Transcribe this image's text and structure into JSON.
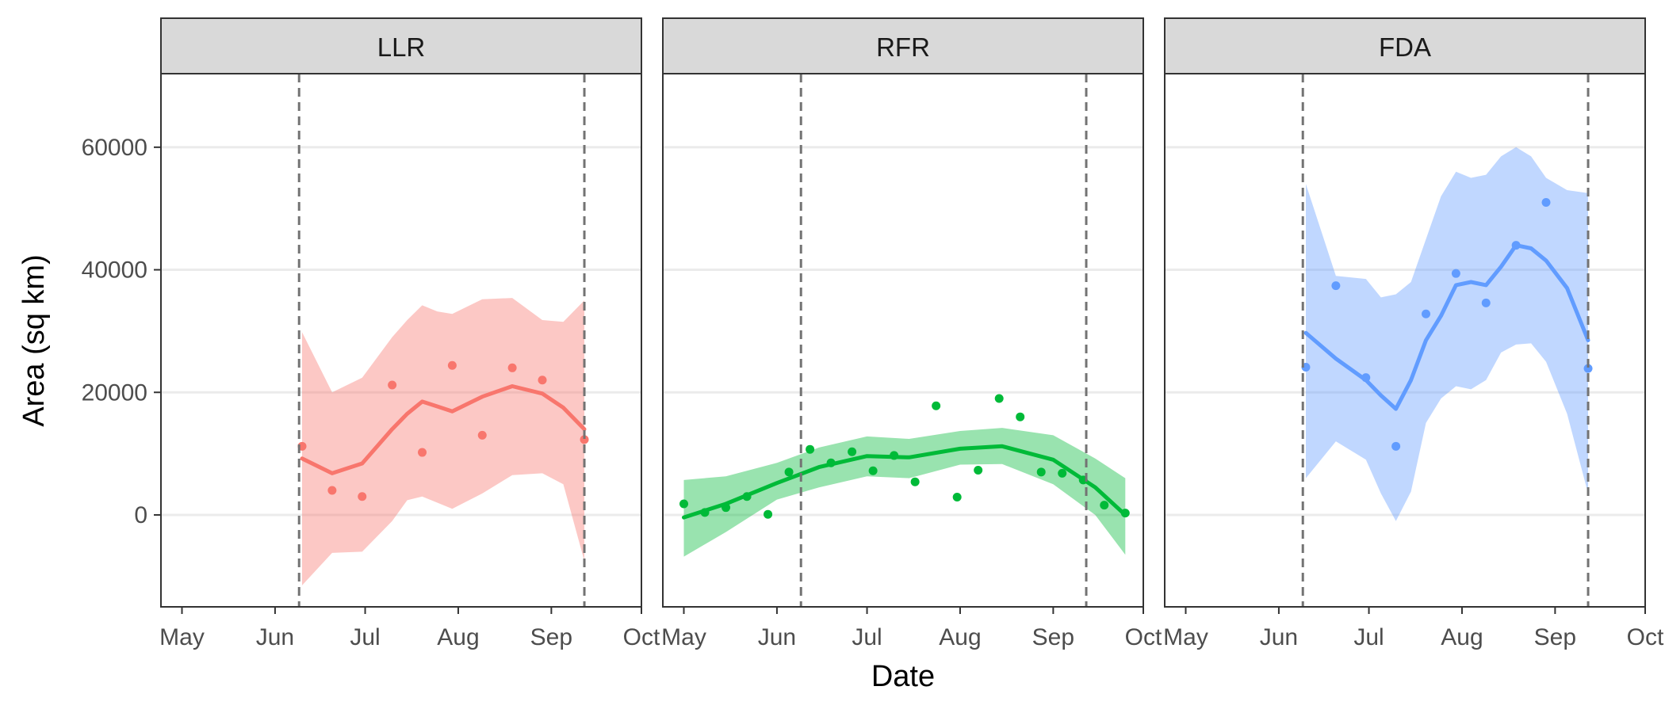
{
  "chart_data": {
    "type": "line",
    "xlabel": "Date",
    "ylabel": "Area (sq km)",
    "ylim": [
      -15000,
      72000
    ],
    "y_ticks": [
      0,
      20000,
      40000,
      60000
    ],
    "y_tick_labels": [
      "0",
      "20000",
      "40000",
      "60000"
    ],
    "x_ticks": [
      "2019-05-01",
      "2019-06-01",
      "2019-07-01",
      "2019-08-01",
      "2019-09-01",
      "2019-10-01"
    ],
    "x_tick_labels": [
      "May",
      "Jun",
      "Jul",
      "Aug",
      "Sep",
      "Oct"
    ],
    "xlim": [
      "2019-04-24",
      "2019-10-01"
    ],
    "grid": "horizontal major",
    "vlines": [
      "2019-06-09",
      "2019-09-12"
    ],
    "panels": [
      {
        "name": "LLR",
        "color": "#F8766D",
        "ribbon_color": "#F8766D",
        "points": [
          {
            "x": "2019-06-10",
            "y": 11200
          },
          {
            "x": "2019-06-20",
            "y": 4000
          },
          {
            "x": "2019-06-30",
            "y": 3000
          },
          {
            "x": "2019-07-10",
            "y": 21200
          },
          {
            "x": "2019-07-20",
            "y": 10200
          },
          {
            "x": "2019-07-30",
            "y": 24400
          },
          {
            "x": "2019-08-09",
            "y": 13000
          },
          {
            "x": "2019-08-19",
            "y": 24000
          },
          {
            "x": "2019-08-29",
            "y": 22000
          },
          {
            "x": "2019-09-12",
            "y": 12300
          }
        ],
        "smooth": {
          "x": [
            "2019-06-10",
            "2019-06-20",
            "2019-06-30",
            "2019-07-10",
            "2019-07-15",
            "2019-07-20",
            "2019-07-25",
            "2019-07-30",
            "2019-08-09",
            "2019-08-19",
            "2019-08-29",
            "2019-09-05",
            "2019-09-12"
          ],
          "y": [
            9200,
            6800,
            8400,
            14000,
            16500,
            18500,
            17700,
            16900,
            19300,
            21000,
            19800,
            17500,
            14000
          ],
          "lower": [
            -11500,
            -6200,
            -6000,
            -1000,
            2400,
            3000,
            2000,
            1000,
            3500,
            6500,
            6800,
            5000,
            -7500
          ],
          "upper": [
            29800,
            20000,
            22400,
            29000,
            31800,
            34200,
            33200,
            32800,
            35200,
            35400,
            31800,
            31500,
            35000
          ]
        }
      },
      {
        "name": "RFR",
        "color": "#00BA38",
        "ribbon_color": "#00BA38",
        "points": [
          {
            "x": "2019-05-01",
            "y": 1800
          },
          {
            "x": "2019-05-08",
            "y": 400
          },
          {
            "x": "2019-05-15",
            "y": 1200
          },
          {
            "x": "2019-05-22",
            "y": 3000
          },
          {
            "x": "2019-05-29",
            "y": 100
          },
          {
            "x": "2019-06-05",
            "y": 7000
          },
          {
            "x": "2019-06-12",
            "y": 10700
          },
          {
            "x": "2019-06-19",
            "y": 8500
          },
          {
            "x": "2019-06-26",
            "y": 10300
          },
          {
            "x": "2019-07-03",
            "y": 7200
          },
          {
            "x": "2019-07-10",
            "y": 9700
          },
          {
            "x": "2019-07-17",
            "y": 5400
          },
          {
            "x": "2019-07-24",
            "y": 17800
          },
          {
            "x": "2019-07-31",
            "y": 2900
          },
          {
            "x": "2019-08-07",
            "y": 7300
          },
          {
            "x": "2019-08-14",
            "y": 19000
          },
          {
            "x": "2019-08-21",
            "y": 16000
          },
          {
            "x": "2019-08-28",
            "y": 7000
          },
          {
            "x": "2019-09-04",
            "y": 6800
          },
          {
            "x": "2019-09-11",
            "y": 5700
          },
          {
            "x": "2019-09-18",
            "y": 1600
          },
          {
            "x": "2019-09-25",
            "y": 300
          }
        ],
        "smooth": {
          "x": [
            "2019-05-01",
            "2019-05-15",
            "2019-06-01",
            "2019-06-15",
            "2019-07-01",
            "2019-07-15",
            "2019-08-01",
            "2019-08-15",
            "2019-09-01",
            "2019-09-15",
            "2019-09-25"
          ],
          "y": [
            -400,
            1800,
            5200,
            7800,
            9600,
            9400,
            10800,
            11200,
            9000,
            4500,
            0
          ],
          "lower": [
            -6800,
            -2800,
            2500,
            4500,
            6300,
            6000,
            8200,
            8300,
            5000,
            0,
            -6500
          ],
          "upper": [
            5700,
            6300,
            8500,
            11000,
            12800,
            12400,
            13700,
            14200,
            13000,
            9200,
            6000
          ]
        }
      },
      {
        "name": "FDA",
        "color": "#619CFF",
        "ribbon_color": "#619CFF",
        "points": [
          {
            "x": "2019-06-10",
            "y": 24100
          },
          {
            "x": "2019-06-20",
            "y": 37400
          },
          {
            "x": "2019-06-30",
            "y": 22400
          },
          {
            "x": "2019-07-10",
            "y": 11200
          },
          {
            "x": "2019-07-20",
            "y": 32800
          },
          {
            "x": "2019-07-30",
            "y": 39400
          },
          {
            "x": "2019-08-09",
            "y": 34600
          },
          {
            "x": "2019-08-19",
            "y": 44000
          },
          {
            "x": "2019-08-29",
            "y": 51000
          },
          {
            "x": "2019-09-12",
            "y": 23900
          }
        ],
        "smooth": {
          "x": [
            "2019-06-10",
            "2019-06-20",
            "2019-06-30",
            "2019-07-05",
            "2019-07-10",
            "2019-07-15",
            "2019-07-20",
            "2019-07-25",
            "2019-07-30",
            "2019-08-04",
            "2019-08-09",
            "2019-08-14",
            "2019-08-19",
            "2019-08-24",
            "2019-08-29",
            "2019-09-05",
            "2019-09-12"
          ],
          "y": [
            29700,
            25500,
            22000,
            19500,
            17300,
            22000,
            28500,
            32500,
            37500,
            38000,
            37500,
            40500,
            44000,
            43500,
            41500,
            37000,
            28500
          ],
          "lower": [
            6000,
            12000,
            9000,
            3500,
            -1000,
            3800,
            15000,
            19000,
            21000,
            20500,
            22000,
            26500,
            27800,
            28000,
            25000,
            16500,
            3500
          ],
          "upper": [
            54000,
            39000,
            38500,
            35500,
            36000,
            38000,
            45000,
            52000,
            56000,
            55000,
            55500,
            58500,
            60000,
            58500,
            55000,
            53000,
            52500
          ]
        }
      }
    ]
  }
}
